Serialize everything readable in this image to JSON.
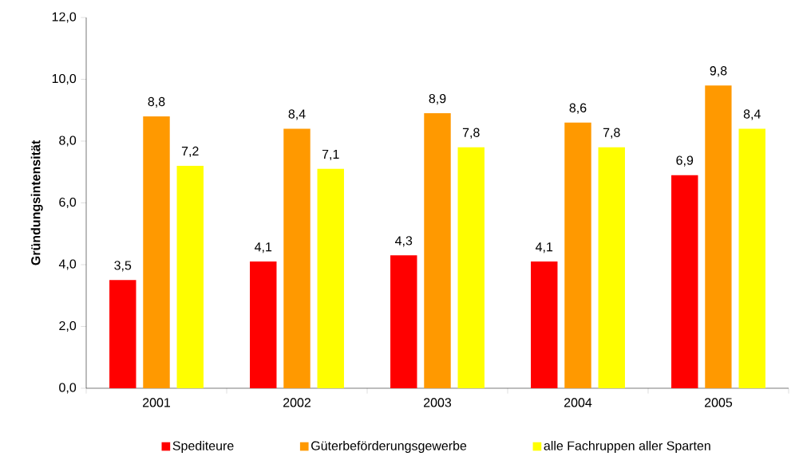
{
  "chart_data": {
    "type": "bar",
    "ylabel": "Gründungsintensität",
    "categories": [
      "2001",
      "2002",
      "2003",
      "2004",
      "2005"
    ],
    "series": [
      {
        "name": "Spediteure",
        "color": "#ff0000",
        "values": [
          3.5,
          4.1,
          4.3,
          4.1,
          6.9
        ],
        "value_labels": [
          "3,5",
          "4,1",
          "4,3",
          "4,1",
          "6,9"
        ]
      },
      {
        "name": "Güterbeförderungsgewerbe",
        "color": "#ff9900",
        "values": [
          8.8,
          8.4,
          8.9,
          8.6,
          9.8
        ],
        "value_labels": [
          "8,8",
          "8,4",
          "8,9",
          "8,6",
          "9,8"
        ]
      },
      {
        "name": "alle Fachruppen aller Sparten",
        "color": "#ffff00",
        "values": [
          7.2,
          7.1,
          7.8,
          7.8,
          8.4
        ],
        "value_labels": [
          "7,2",
          "7,1",
          "7,8",
          "7,8",
          "8,4"
        ]
      }
    ],
    "ylim": [
      0,
      12
    ],
    "yticks": [
      {
        "value": 0,
        "label": "0,0"
      },
      {
        "value": 2,
        "label": "2,0"
      },
      {
        "value": 4,
        "label": "4,0"
      },
      {
        "value": 6,
        "label": "6,0"
      },
      {
        "value": 8,
        "label": "8,0"
      },
      {
        "value": 10,
        "label": "10,0"
      },
      {
        "value": 12,
        "label": "12,0"
      }
    ],
    "legend": "bottom"
  }
}
